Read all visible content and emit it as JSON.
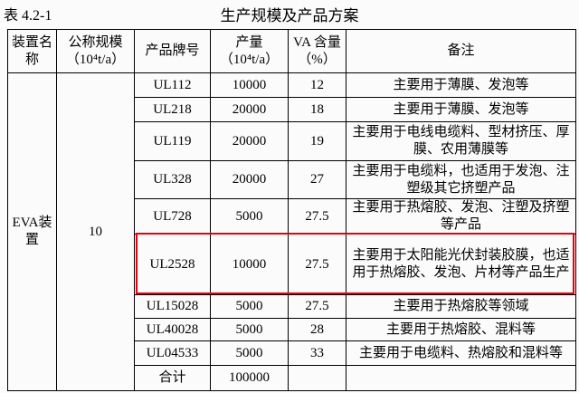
{
  "header": {
    "label": "表 4.2-1",
    "title": "生产规模及产品方案"
  },
  "table": {
    "columns": [
      "装置名称",
      "公称规模（10⁴t/a）",
      "产品牌号",
      "产量（10⁴t/a）",
      "VA 含量（%）",
      "备注"
    ],
    "group": {
      "name": "EVA装置",
      "scale": 10
    },
    "rows": [
      [
        "UL112",
        10000,
        12,
        "主要用于薄膜、发泡等"
      ],
      [
        "UL218",
        20000,
        18,
        "主要用于薄膜、发泡等"
      ],
      [
        "UL119",
        20000,
        19,
        "主要用于电线电缆料、型材挤压、厚膜、农用薄膜等"
      ],
      [
        "UL328",
        20000,
        27,
        "主要用于电缆料，也适用于发泡、注塑级其它挤塑产品"
      ],
      [
        "UL728",
        5000,
        27.5,
        "主要用于热熔胶、发泡、注塑及挤塑等产品"
      ],
      [
        "UL2528",
        10000,
        27.5,
        "主要用于太阳能光伏封装胶膜，也适用于热熔胶、发泡、片材等产品生产"
      ],
      [
        "UL15028",
        5000,
        27.5,
        "主要用于热熔胶等领域"
      ],
      [
        "UL40028",
        5000,
        28,
        "主要用于热熔胶、混料等"
      ],
      [
        "UL04533",
        5000,
        33,
        "主要用于电缆料、热熔胶和混料等"
      ]
    ],
    "total": {
      "label": "合计",
      "value": 100000
    }
  }
}
